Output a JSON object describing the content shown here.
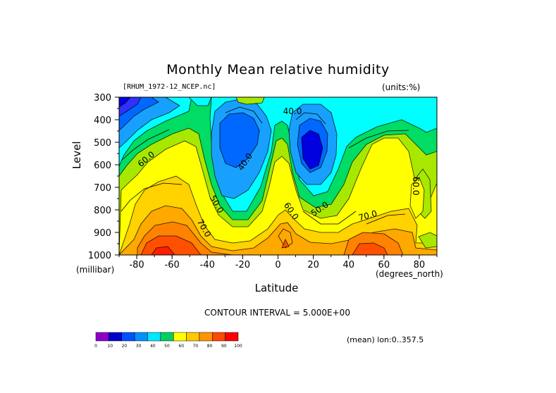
{
  "chart_data": {
    "type": "heatmap",
    "title": "Monthly Mean relative humidity",
    "subtitle_left": "[RHUM_1972-12_NCEP.nc]",
    "subtitle_right": "(units:%)",
    "xlabel": "Latitude",
    "xunit": "(degrees_north)",
    "ylabel": "Level",
    "yunit": "(millibar)",
    "xlim": [
      -90,
      90
    ],
    "ylim": [
      1000,
      300
    ],
    "xticks": [
      "-80",
      "-60",
      "-40",
      "-20",
      "0",
      "20",
      "40",
      "60",
      "80"
    ],
    "yticks": [
      "300",
      "400",
      "500",
      "600",
      "700",
      "800",
      "900",
      "1000"
    ],
    "contour_interval_text": "CONTOUR INTERVAL = 5.000E+00",
    "footer_note": "(mean) lon:0..357.5",
    "contour_labels": [
      "40.0",
      "40.0",
      "50.0",
      "50.0",
      "60.0",
      "60.0",
      "60.0",
      "70.0",
      "70.0"
    ],
    "colorbar": {
      "levels": [
        "0",
        "10",
        "20",
        "30",
        "40",
        "50",
        "60",
        "70",
        "80",
        "90",
        "100"
      ],
      "colors": [
        "#8e00c8",
        "#0000d0",
        "#0050ff",
        "#0090ff",
        "#00e8ff",
        "#00d060",
        "#ffff00",
        "#ffc800",
        "#ff9600",
        "#ff4800",
        "#ff0000"
      ]
    },
    "fill_colors": {
      "r40_45": "#0068ff",
      "r45_50": "#18a0ff",
      "r50_55": "#00ffff",
      "r55_60": "#00dc64",
      "r60_65": "#a8e800",
      "r65_70": "#ffff00",
      "r70_75": "#ffd200",
      "r75_80": "#ffa800",
      "r80_85": "#ff8200",
      "r85_90": "#ff5000",
      "r90_95": "#ff1e00",
      "r_dry": "#0000e0",
      "r_dry2": "#3030ff"
    }
  }
}
